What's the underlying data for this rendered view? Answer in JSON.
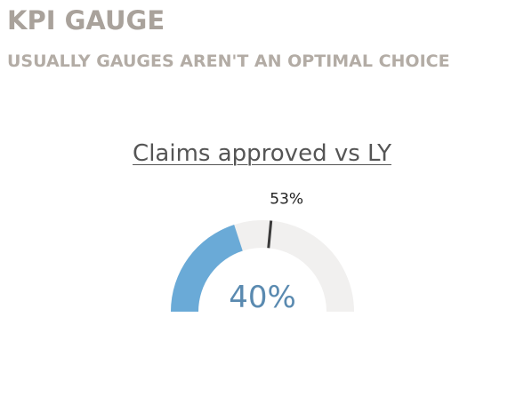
{
  "header": {
    "title": "KPI GAUGE",
    "subtitle": "USUALLY GAUGES AREN'T AN OPTIMAL CHOICE"
  },
  "chart_data": {
    "type": "gauge",
    "title": "Claims approved vs LY",
    "value": 40,
    "value_label": "40%",
    "target": 53,
    "target_label": "53%",
    "min": 0,
    "max": 100,
    "colors": {
      "fill": "#6aaad7",
      "track": "#f1f0ef",
      "target": "#3a3a3a",
      "value_text": "#5a8ab0",
      "target_text": "#222222"
    }
  }
}
